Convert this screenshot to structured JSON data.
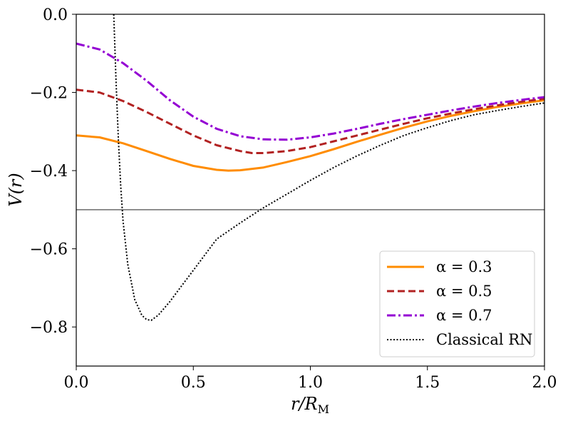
{
  "chart_data": {
    "type": "line",
    "title": "",
    "xlabel": "r/R_M",
    "ylabel": "V(r)",
    "xlim": [
      0.0,
      2.0
    ],
    "ylim": [
      -0.9,
      0.0
    ],
    "xticks": [
      0.0,
      0.5,
      1.0,
      1.5,
      2.0
    ],
    "xtick_labels": [
      "0.0",
      "0.5",
      "1.0",
      "1.5",
      "2.0"
    ],
    "yticks": [
      0.0,
      -0.2,
      -0.4,
      -0.6,
      -0.8
    ],
    "ytick_labels": [
      "0.0",
      "−0.2",
      "−0.4",
      "−0.6",
      "−0.8"
    ],
    "grid": false,
    "legend_position": "bottom-right",
    "reference_line": {
      "y": -0.5,
      "color": "#808080"
    },
    "series": [
      {
        "name": "α = 0.3",
        "color": "#FF8C00",
        "dash": "solid",
        "x": [
          0.0,
          0.1,
          0.2,
          0.3,
          0.4,
          0.5,
          0.6,
          0.65,
          0.7,
          0.8,
          0.9,
          1.0,
          1.1,
          1.2,
          1.3,
          1.4,
          1.5,
          1.6,
          1.7,
          1.8,
          1.9,
          2.0
        ],
        "y": [
          -0.31,
          -0.315,
          -0.33,
          -0.35,
          -0.37,
          -0.388,
          -0.398,
          -0.4,
          -0.399,
          -0.392,
          -0.378,
          -0.363,
          -0.345,
          -0.326,
          -0.308,
          -0.29,
          -0.274,
          -0.26,
          -0.248,
          -0.237,
          -0.228,
          -0.22
        ]
      },
      {
        "name": "α = 0.5",
        "color": "#B22222",
        "dash": "dashed",
        "x": [
          0.0,
          0.1,
          0.2,
          0.3,
          0.4,
          0.5,
          0.6,
          0.7,
          0.75,
          0.8,
          0.9,
          1.0,
          1.1,
          1.2,
          1.3,
          1.4,
          1.5,
          1.6,
          1.7,
          1.8,
          1.9,
          2.0
        ],
        "y": [
          -0.193,
          -0.2,
          -0.222,
          -0.25,
          -0.28,
          -0.31,
          -0.335,
          -0.35,
          -0.355,
          -0.355,
          -0.35,
          -0.34,
          -0.325,
          -0.31,
          -0.295,
          -0.28,
          -0.266,
          -0.254,
          -0.243,
          -0.233,
          -0.224,
          -0.216
        ]
      },
      {
        "name": "α = 0.7",
        "color": "#9400D3",
        "dash": "dashdot",
        "x": [
          0.0,
          0.1,
          0.2,
          0.3,
          0.4,
          0.5,
          0.6,
          0.7,
          0.8,
          0.9,
          1.0,
          1.1,
          1.2,
          1.3,
          1.4,
          1.5,
          1.6,
          1.7,
          1.8,
          1.9,
          2.0
        ],
        "y": [
          -0.075,
          -0.09,
          -0.125,
          -0.17,
          -0.22,
          -0.262,
          -0.293,
          -0.312,
          -0.32,
          -0.321,
          -0.315,
          -0.305,
          -0.293,
          -0.28,
          -0.268,
          -0.257,
          -0.246,
          -0.236,
          -0.227,
          -0.219,
          -0.212
        ]
      },
      {
        "name": "Classical RN",
        "color": "#000000",
        "dash": "dotted",
        "x": [
          0.16,
          0.17,
          0.18,
          0.19,
          0.2,
          0.22,
          0.25,
          0.28,
          0.3,
          0.32,
          0.35,
          0.4,
          0.45,
          0.5,
          0.6,
          0.7,
          0.8,
          0.9,
          1.0,
          1.1,
          1.2,
          1.3,
          1.4,
          1.5,
          1.6,
          1.7,
          1.8,
          1.9,
          2.0
        ],
        "y": [
          0.0,
          -0.17,
          -0.32,
          -0.44,
          -0.53,
          -0.64,
          -0.73,
          -0.77,
          -0.781,
          -0.783,
          -0.77,
          -0.735,
          -0.695,
          -0.655,
          -0.575,
          -0.534,
          -0.495,
          -0.46,
          -0.425,
          -0.392,
          -0.362,
          -0.335,
          -0.31,
          -0.29,
          -0.272,
          -0.257,
          -0.246,
          -0.236,
          -0.227
        ]
      }
    ]
  }
}
